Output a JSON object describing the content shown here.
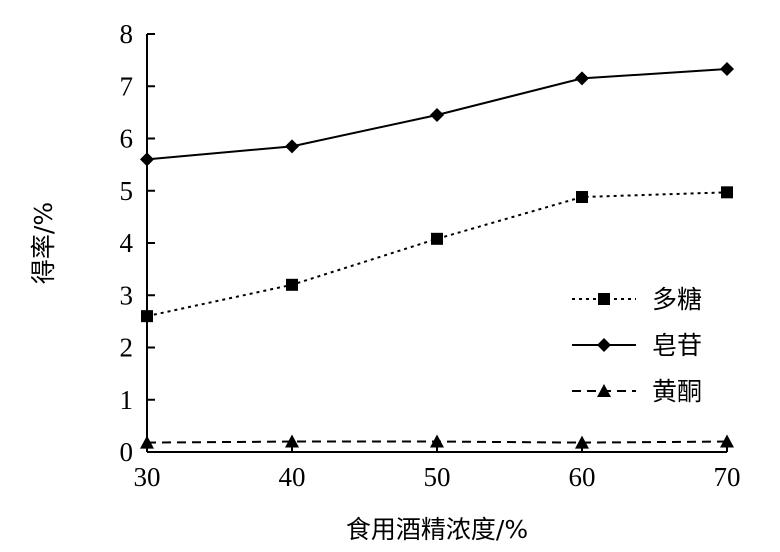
{
  "chart_data": {
    "type": "line",
    "xlabel": "食用酒精浓度/%",
    "ylabel": "得率/%",
    "x": [
      30,
      40,
      50,
      60,
      70
    ],
    "xlim": [
      30,
      70
    ],
    "ylim": [
      0,
      8
    ],
    "xticks": [
      30,
      40,
      50,
      60,
      70
    ],
    "yticks": [
      0,
      1,
      2,
      3,
      4,
      5,
      6,
      7,
      8
    ],
    "grid": false,
    "legend_position": "right",
    "series": [
      {
        "name": "多糖",
        "values": [
          2.6,
          3.2,
          4.08,
          4.88,
          4.97
        ],
        "marker": "square",
        "line_style": "dotted",
        "color": "#000000"
      },
      {
        "name": "皂苷",
        "values": [
          5.6,
          5.85,
          6.45,
          7.15,
          7.33
        ],
        "marker": "diamond",
        "line_style": "solid",
        "color": "#000000"
      },
      {
        "name": "黄酮",
        "values": [
          0.18,
          0.2,
          0.2,
          0.18,
          0.2
        ],
        "marker": "triangle",
        "line_style": "dashed",
        "color": "#000000"
      }
    ]
  }
}
